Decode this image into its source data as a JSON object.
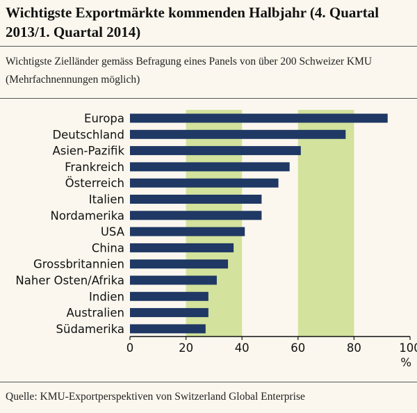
{
  "title": "Wichtigste Exportmärkte kommenden Halbjahr (4. Quartal 2013/1. Quartal 2014)",
  "subtitle": "Wichtigste Zielländer gemäss Befragung eines Panels von über 200 Schweizer KMU (Mehrfachnennungen möglich)",
  "source": "Quelle: KMU-Exportperspektiven von Switzerland Global Enterprise",
  "colors": {
    "bar": "#1f3864",
    "band": "#d3e29c",
    "background": "#fbf7ee"
  },
  "chart_data": {
    "type": "bar",
    "orientation": "horizontal",
    "categories": [
      "Europa",
      "Deutschland",
      "Asien-Pazifik",
      "Frankreich",
      "Österreich",
      "Italien",
      "Nordamerika",
      "USA",
      "China",
      "Grossbritannien",
      "Naher Osten/Afrika",
      "Indien",
      "Australien",
      "Südamerika"
    ],
    "values": [
      92,
      77,
      61,
      57,
      53,
      47,
      47,
      41,
      37,
      35,
      31,
      28,
      28,
      27
    ],
    "xlabel": "%",
    "xlim": [
      0,
      100
    ],
    "xticks": [
      "0",
      "20",
      "40",
      "60",
      "80",
      "100"
    ],
    "shaded_bands": [
      [
        20,
        40
      ],
      [
        60,
        80
      ]
    ],
    "grid": false
  }
}
